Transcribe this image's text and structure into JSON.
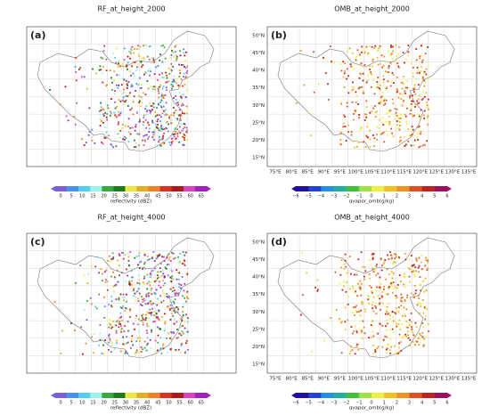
{
  "panels": [
    {
      "title": "RF_at_height_2000",
      "label": "(a)",
      "colorbar": {
        "label": "reflectivity (dBZ)",
        "ticks": [
          "0",
          "5",
          "10",
          "15",
          "20",
          "25",
          "30",
          "35",
          "40",
          "45",
          "50",
          "55",
          "60",
          "65"
        ]
      }
    },
    {
      "title": "OMB_at_height_2000",
      "label": "(b)",
      "colorbar": {
        "label": "qvapor_omb(g/kg)",
        "ticks": [
          "−6",
          "−5",
          "−4",
          "−3",
          "−2",
          "−1",
          "0",
          "1",
          "2",
          "3",
          "4",
          "5",
          "6"
        ]
      },
      "lat_ticks": [
        "15°N",
        "20°N",
        "25°N",
        "30°N",
        "35°N",
        "40°N",
        "45°N",
        "50°N"
      ],
      "lon_ticks": [
        "75°E",
        "80°E",
        "85°E",
        "90°E",
        "95°E",
        "100°E",
        "105°E",
        "110°E",
        "115°E",
        "120°E",
        "125°E",
        "130°E",
        "135°E"
      ]
    },
    {
      "title": "RF_at_height_4000",
      "label": "(c)",
      "colorbar": {
        "label": "reflectivity (dBZ)",
        "ticks": [
          "0",
          "5",
          "10",
          "15",
          "20",
          "25",
          "30",
          "35",
          "40",
          "45",
          "50",
          "55",
          "60",
          "65"
        ]
      }
    },
    {
      "title": "OMB_at_height_4000",
      "label": "(d)",
      "colorbar": {
        "label": "qvapor_omb(g/kg)",
        "ticks": [
          "−6",
          "−5",
          "−4",
          "−3",
          "−2",
          "−1",
          "0",
          "1",
          "2",
          "3",
          "4",
          "5",
          "6"
        ]
      },
      "lat_ticks": [
        "15°N",
        "20°N",
        "25°N",
        "30°N",
        "35°N",
        "40°N",
        "45°N",
        "50°N"
      ],
      "lon_ticks": [
        "75°E",
        "80°E",
        "85°E",
        "90°E",
        "95°E",
        "100°E",
        "105°E",
        "110°E",
        "115°E",
        "120°E",
        "125°E",
        "130°E",
        "135°E"
      ]
    }
  ]
}
